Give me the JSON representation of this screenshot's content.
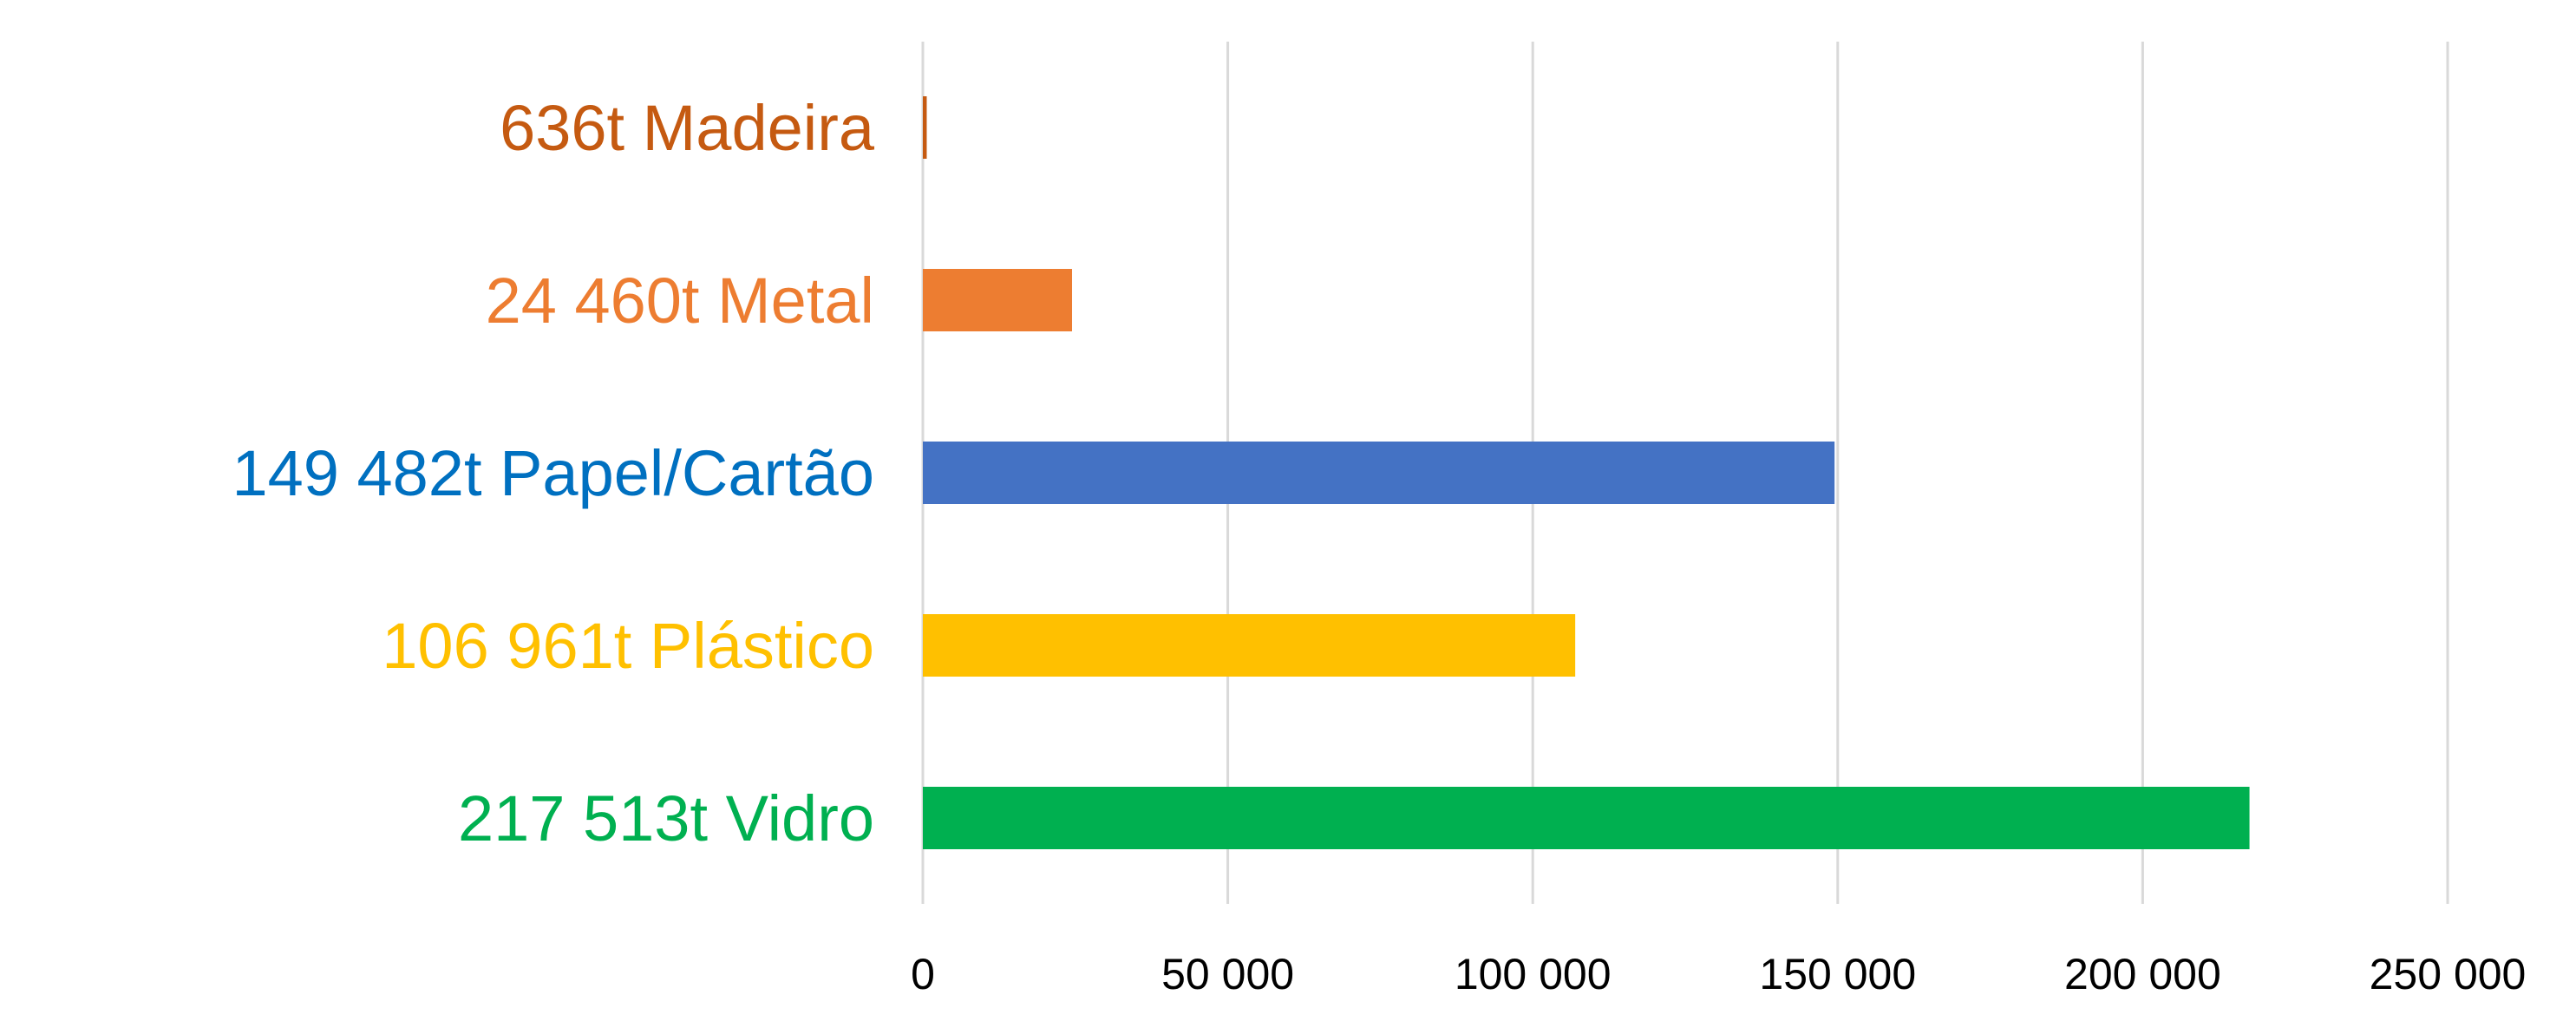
{
  "chart_data": {
    "type": "bar",
    "orientation": "horizontal",
    "categories": [
      "636t Madeira",
      "24 460t Metal",
      "149 482t Papel/Cartão",
      "106 961t Plástico",
      "217 513t Vidro"
    ],
    "values": [
      636,
      24460,
      149482,
      106961,
      217513
    ],
    "colors": [
      "#C55A11",
      "#ED7D31",
      "#4472C4",
      "#FFC000",
      "#00B050"
    ],
    "label_colors": [
      "#C55A11",
      "#ED7D31",
      "#0070C0",
      "#FFC000",
      "#00B050"
    ],
    "xlim": [
      0,
      250000
    ],
    "xticks": [
      0,
      50000,
      100000,
      150000,
      200000,
      250000
    ],
    "xtick_labels": [
      "0",
      "50 000",
      "100 000",
      "150 000",
      "200 000",
      "250 000"
    ],
    "gridlines": "vertical",
    "gridline_color": "#D9D9D9",
    "title": "",
    "xlabel": "",
    "ylabel": "",
    "legend": "none"
  }
}
